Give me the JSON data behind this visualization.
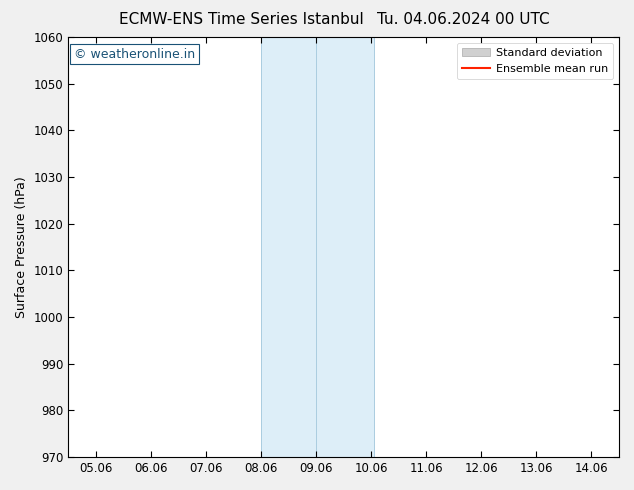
{
  "title_left": "ECMW-ENS Time Series Istanbul",
  "title_right": "Tu. 04.06.2024 00 UTC",
  "ylabel": "Surface Pressure (hPa)",
  "ylim": [
    970,
    1060
  ],
  "yticks": [
    970,
    980,
    990,
    1000,
    1010,
    1020,
    1030,
    1040,
    1050,
    1060
  ],
  "xlim_start": 4.5,
  "xlim_end": 14.5,
  "xtick_labels": [
    "05.06",
    "06.06",
    "07.06",
    "08.06",
    "09.06",
    "10.06",
    "11.06",
    "12.06",
    "13.06",
    "14.06"
  ],
  "xtick_positions": [
    5,
    6,
    7,
    8,
    9,
    10,
    11,
    12,
    13,
    14
  ],
  "shaded_region_x1": 8.0,
  "shaded_region_x2": 10.06,
  "shaded_color": "#ddeef8",
  "shaded_edge_color": "#aacce0",
  "shaded_mid_x": 9.0,
  "watermark_text": "© weatheronline.in",
  "watermark_color": "#1a5276",
  "legend_std_dev_label": "Standard deviation",
  "legend_mean_label": "Ensemble mean run",
  "legend_std_dev_facecolor": "#d0d0d0",
  "legend_std_dev_edgecolor": "#aaaaaa",
  "legend_mean_color": "#ff2200",
  "background_color": "#f0f0f0",
  "plot_bg_color": "#ffffff",
  "title_fontsize": 11,
  "axis_label_fontsize": 9,
  "tick_fontsize": 8.5,
  "watermark_fontsize": 9,
  "legend_fontsize": 8
}
